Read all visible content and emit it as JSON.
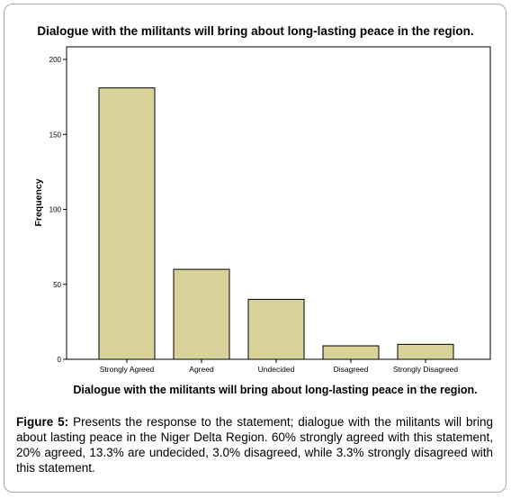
{
  "chart_data": {
    "type": "bar",
    "title": "Dialogue with the militants will bring about long-lasting peace in the region.",
    "xlabel": "Dialogue with the militants will bring about long-lasting peace in the region.",
    "ylabel": "Frequency",
    "categories": [
      "Strongly Agreed",
      "Agreed",
      "Undecided",
      "Disagreed",
      "Strongly Disagreed"
    ],
    "values": [
      181,
      60,
      40,
      9,
      10
    ],
    "ylim": [
      0,
      200
    ],
    "yticks": [
      0,
      50,
      100,
      150,
      200
    ],
    "grid": false,
    "bar_color": "#d9d39a",
    "bar_edge_color": "#000000"
  },
  "caption": {
    "figure_label": "Figure 5:",
    "text": " Presents the response to the statement; dialogue with the militants will bring about lasting peace in the Niger Delta Region. 60% strongly agreed with this statement, 20% agreed, 13.3% are undecided, 3.0% disagreed, while 3.3% strongly disagreed with this statement."
  }
}
